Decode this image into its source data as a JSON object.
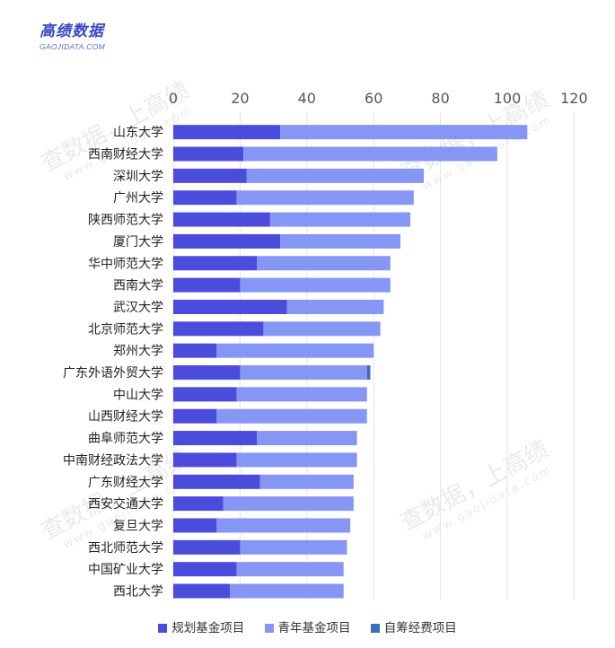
{
  "brand": {
    "name": "高绩数据",
    "sub": "GAOJIDATA.COM"
  },
  "watermark": {
    "text": "查数据，上高绩",
    "sub": "www.gaojidata.com"
  },
  "colors": {
    "planning": "#4b4bdc",
    "youth": "#8596f5",
    "self": "#3c6bc4",
    "grid": "#e4e4e4",
    "tick": "#555555",
    "category": "#222222"
  },
  "chart_data": {
    "type": "bar",
    "orientation": "horizontal",
    "stacked": true,
    "categories": [
      "山东大学",
      "西南财经大学",
      "深圳大学",
      "广州大学",
      "陕西师范大学",
      "厦门大学",
      "华中师范大学",
      "西南大学",
      "武汉大学",
      "北京师范大学",
      "郑州大学",
      "广东外语外贸大学",
      "中山大学",
      "山西财经大学",
      "曲阜师范大学",
      "中南财经政法大学",
      "广东财经大学",
      "西安交通大学",
      "复旦大学",
      "西北师范大学",
      "中国矿业大学",
      "西北大学"
    ],
    "series": [
      {
        "name": "规划基金项目",
        "values": [
          32,
          21,
          22,
          19,
          29,
          32,
          25,
          20,
          34,
          27,
          13,
          20,
          19,
          13,
          25,
          19,
          26,
          15,
          13,
          20,
          19,
          17
        ]
      },
      {
        "name": "青年基金项目",
        "values": [
          74,
          76,
          53,
          53,
          42,
          36,
          40,
          45,
          29,
          35,
          47,
          38,
          39,
          45,
          30,
          36,
          28,
          39,
          40,
          32,
          32,
          34
        ]
      },
      {
        "name": "自筹经费项目",
        "values": [
          0,
          0,
          0,
          0,
          0,
          0,
          0,
          0,
          0,
          0,
          0,
          1,
          0,
          0,
          0,
          0,
          0,
          0,
          0,
          0,
          0,
          0
        ]
      }
    ],
    "xlim": [
      0,
      120
    ],
    "xticks": [
      0,
      20,
      40,
      60,
      80,
      100,
      120
    ],
    "xaxis_position": "top",
    "grid": true,
    "legend_position": "bottom"
  }
}
